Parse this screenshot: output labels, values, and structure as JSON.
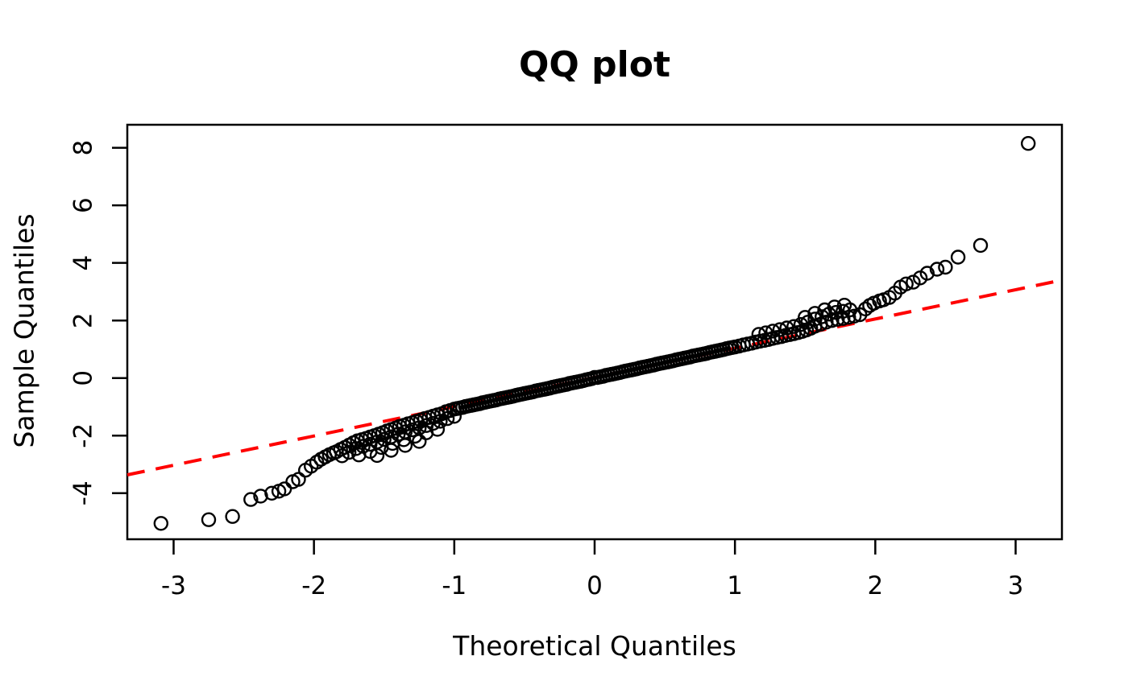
{
  "title": "QQ plot",
  "x_axis": {
    "label": "Theoretical Quantiles",
    "ticks": [
      -3,
      -2,
      -1,
      0,
      1,
      2,
      3
    ]
  },
  "y_axis": {
    "label": "Sample Quantiles",
    "ticks": [
      -4,
      -2,
      0,
      2,
      4,
      6,
      8
    ]
  },
  "colors": {
    "points": "#000000",
    "reference_line": "#ff0000",
    "axis": "#000000",
    "background": "#ffffff"
  },
  "chart_data": {
    "type": "scatter",
    "title": "QQ plot",
    "xlabel": "Theoretical Quantiles",
    "ylabel": "Sample Quantiles",
    "xlim": [
      -3.33,
      3.33
    ],
    "ylim": [
      -5.6,
      8.8
    ],
    "x_ticks": [
      -3,
      -2,
      -1,
      0,
      1,
      2,
      3
    ],
    "y_ticks": [
      -4,
      -2,
      0,
      2,
      4,
      6,
      8
    ],
    "grid": false,
    "legend": null,
    "point_style": {
      "marker": "open-circle",
      "color": "#000000",
      "radius_px": 8,
      "stroke_px": 2.4
    },
    "reference_line": {
      "style": "dashed",
      "color": "#ff0000",
      "slope": 1.016,
      "intercept": 0.02,
      "stroke_px": 4,
      "dash": [
        22,
        14
      ]
    },
    "points": [
      [
        -3.09,
        -5.05
      ],
      [
        -2.75,
        -4.92
      ],
      [
        -2.58,
        -4.81
      ],
      [
        -2.45,
        -4.22
      ],
      [
        -2.38,
        -4.1
      ],
      [
        -2.3,
        -4.0
      ],
      [
        -2.25,
        -3.93
      ],
      [
        -2.21,
        -3.85
      ],
      [
        -2.15,
        -3.6
      ],
      [
        -2.11,
        -3.52
      ],
      [
        -2.06,
        -3.2
      ],
      [
        -2.02,
        -3.06
      ],
      [
        -1.98,
        -2.92
      ],
      [
        -1.95,
        -2.82
      ],
      [
        -1.92,
        -2.74
      ],
      [
        -1.89,
        -2.66
      ],
      [
        -1.86,
        -2.6
      ],
      [
        -1.84,
        -2.56
      ],
      [
        -1.81,
        -2.48
      ],
      [
        -1.78,
        -2.41
      ],
      [
        -1.75,
        -2.33
      ],
      [
        -1.72,
        -2.25
      ],
      [
        -1.69,
        -2.18
      ],
      [
        -1.66,
        -2.14
      ],
      [
        -1.63,
        -2.1
      ],
      [
        -1.6,
        -2.05
      ],
      [
        -1.57,
        -2.0
      ],
      [
        -1.54,
        -1.95
      ],
      [
        -1.51,
        -1.9
      ],
      [
        -1.48,
        -1.84
      ],
      [
        -1.45,
        -1.79
      ],
      [
        -1.42,
        -1.74
      ],
      [
        -1.39,
        -1.68
      ],
      [
        -1.36,
        -1.64
      ],
      [
        -1.33,
        -1.59
      ],
      [
        -1.3,
        -1.55
      ],
      [
        -1.27,
        -1.5
      ],
      [
        -1.24,
        -1.46
      ],
      [
        -1.21,
        -1.41
      ],
      [
        -1.18,
        -1.37
      ],
      [
        -1.15,
        -1.32
      ],
      [
        -1.12,
        -1.28
      ],
      [
        -1.09,
        -1.24
      ],
      [
        -1.06,
        -1.17
      ],
      [
        -1.03,
        -1.13
      ],
      [
        -1.0,
        -1.08
      ],
      [
        -0.98,
        -1.06
      ],
      [
        -0.96,
        -1.04
      ],
      [
        -0.94,
        -1.02
      ],
      [
        -0.92,
        -0.99
      ],
      [
        -0.9,
        -0.97
      ],
      [
        -0.88,
        -0.95
      ],
      [
        -0.86,
        -0.93
      ],
      [
        -0.84,
        -0.91
      ],
      [
        -0.82,
        -0.89
      ],
      [
        -0.8,
        -0.86
      ],
      [
        -0.78,
        -0.84
      ],
      [
        -0.76,
        -0.82
      ],
      [
        -0.74,
        -0.8
      ],
      [
        -0.72,
        -0.78
      ],
      [
        -0.7,
        -0.76
      ],
      [
        -0.68,
        -0.73
      ],
      [
        -0.66,
        -0.71
      ],
      [
        -0.64,
        -0.69
      ],
      [
        -0.62,
        -0.67
      ],
      [
        -0.6,
        -0.65
      ],
      [
        -0.58,
        -0.63
      ],
      [
        -0.56,
        -0.6
      ],
      [
        -0.54,
        -0.58
      ],
      [
        -0.52,
        -0.56
      ],
      [
        -0.5,
        -0.54
      ],
      [
        -0.48,
        -0.52
      ],
      [
        -0.46,
        -0.5
      ],
      [
        -0.44,
        -0.48
      ],
      [
        -0.42,
        -0.45
      ],
      [
        -0.4,
        -0.43
      ],
      [
        -0.38,
        -0.41
      ],
      [
        -0.36,
        -0.39
      ],
      [
        -0.34,
        -0.37
      ],
      [
        -0.32,
        -0.35
      ],
      [
        -0.3,
        -0.32
      ],
      [
        -0.28,
        -0.3
      ],
      [
        -0.26,
        -0.28
      ],
      [
        -0.24,
        -0.26
      ],
      [
        -0.22,
        -0.24
      ],
      [
        -0.2,
        -0.22
      ],
      [
        -0.18,
        -0.19
      ],
      [
        -0.16,
        -0.17
      ],
      [
        -0.14,
        -0.15
      ],
      [
        -0.12,
        -0.13
      ],
      [
        -0.1,
        -0.11
      ],
      [
        -0.08,
        -0.09
      ],
      [
        -0.06,
        -0.06
      ],
      [
        -0.04,
        -0.04
      ],
      [
        -0.02,
        -0.02
      ],
      [
        0.0,
        0.02
      ],
      [
        0.02,
        0.02
      ],
      [
        0.04,
        0.04
      ],
      [
        0.06,
        0.06
      ],
      [
        0.08,
        0.09
      ],
      [
        0.1,
        0.11
      ],
      [
        0.12,
        0.13
      ],
      [
        0.14,
        0.15
      ],
      [
        0.16,
        0.17
      ],
      [
        0.18,
        0.19
      ],
      [
        0.2,
        0.22
      ],
      [
        0.22,
        0.24
      ],
      [
        0.24,
        0.26
      ],
      [
        0.26,
        0.28
      ],
      [
        0.28,
        0.3
      ],
      [
        0.3,
        0.32
      ],
      [
        0.32,
        0.35
      ],
      [
        0.34,
        0.37
      ],
      [
        0.36,
        0.39
      ],
      [
        0.38,
        0.41
      ],
      [
        0.4,
        0.43
      ],
      [
        0.42,
        0.45
      ],
      [
        0.44,
        0.48
      ],
      [
        0.46,
        0.5
      ],
      [
        0.48,
        0.52
      ],
      [
        0.5,
        0.54
      ],
      [
        0.52,
        0.56
      ],
      [
        0.54,
        0.58
      ],
      [
        0.56,
        0.6
      ],
      [
        0.58,
        0.63
      ],
      [
        0.6,
        0.65
      ],
      [
        0.62,
        0.67
      ],
      [
        0.64,
        0.69
      ],
      [
        0.66,
        0.71
      ],
      [
        0.68,
        0.73
      ],
      [
        0.7,
        0.76
      ],
      [
        0.72,
        0.78
      ],
      [
        0.74,
        0.8
      ],
      [
        0.76,
        0.82
      ],
      [
        0.78,
        0.84
      ],
      [
        0.8,
        0.86
      ],
      [
        0.82,
        0.89
      ],
      [
        0.84,
        0.91
      ],
      [
        0.86,
        0.93
      ],
      [
        0.88,
        0.95
      ],
      [
        0.9,
        0.97
      ],
      [
        0.92,
        0.99
      ],
      [
        0.94,
        1.02
      ],
      [
        0.96,
        1.04
      ],
      [
        0.98,
        1.06
      ],
      [
        1.0,
        1.08
      ],
      [
        1.03,
        1.11
      ],
      [
        1.06,
        1.15
      ],
      [
        1.09,
        1.18
      ],
      [
        1.12,
        1.21
      ],
      [
        1.15,
        1.25
      ],
      [
        1.18,
        1.28
      ],
      [
        1.21,
        1.31
      ],
      [
        1.24,
        1.34
      ],
      [
        1.27,
        1.38
      ],
      [
        1.3,
        1.41
      ],
      [
        1.33,
        1.44
      ],
      [
        1.36,
        1.48
      ],
      [
        1.39,
        1.51
      ],
      [
        1.42,
        1.54
      ],
      [
        1.45,
        1.58
      ],
      [
        1.48,
        1.62
      ],
      [
        1.51,
        1.67
      ],
      [
        1.54,
        1.73
      ],
      [
        1.57,
        1.8
      ],
      [
        1.61,
        1.87
      ],
      [
        1.65,
        1.94
      ],
      [
        1.69,
        2.0
      ],
      [
        1.73,
        2.04
      ],
      [
        1.77,
        2.07
      ],
      [
        1.81,
        2.11
      ],
      [
        1.85,
        2.15
      ],
      [
        1.89,
        2.2
      ],
      [
        1.93,
        2.4
      ],
      [
        1.96,
        2.52
      ],
      [
        1.99,
        2.6
      ],
      [
        2.03,
        2.68
      ],
      [
        2.06,
        2.72
      ],
      [
        2.1,
        2.8
      ],
      [
        2.14,
        2.95
      ],
      [
        2.18,
        3.16
      ],
      [
        2.22,
        3.27
      ],
      [
        2.27,
        3.33
      ],
      [
        2.32,
        3.48
      ],
      [
        2.37,
        3.64
      ],
      [
        2.44,
        3.78
      ],
      [
        2.5,
        3.85
      ],
      [
        2.59,
        4.2
      ],
      [
        2.75,
        4.61
      ],
      [
        3.09,
        8.15
      ],
      [
        -1.8,
        -2.7
      ],
      [
        -1.75,
        -2.58
      ],
      [
        -1.7,
        -2.45
      ],
      [
        -1.65,
        -2.37
      ],
      [
        -1.6,
        -2.3
      ],
      [
        -1.55,
        -2.22
      ],
      [
        -1.5,
        -2.13
      ],
      [
        -1.45,
        -2.04
      ],
      [
        -1.4,
        -1.95
      ],
      [
        -1.35,
        -1.87
      ],
      [
        -1.3,
        -1.8
      ],
      [
        -1.25,
        -1.73
      ],
      [
        -1.2,
        -1.65
      ],
      [
        -1.15,
        -1.57
      ],
      [
        -1.1,
        -1.5
      ],
      [
        -1.05,
        -1.41
      ],
      [
        -1.0,
        -1.33
      ],
      [
        -1.68,
        -2.67
      ],
      [
        -1.6,
        -2.55
      ],
      [
        -1.52,
        -2.41
      ],
      [
        -1.44,
        -2.27
      ],
      [
        -1.36,
        -2.14
      ],
      [
        -1.28,
        -2.02
      ],
      [
        -1.2,
        -1.9
      ],
      [
        -1.12,
        -1.78
      ],
      [
        -1.55,
        -2.69
      ],
      [
        -1.45,
        -2.51
      ],
      [
        -1.35,
        -2.34
      ],
      [
        -1.25,
        -2.2
      ],
      [
        1.17,
        1.52
      ],
      [
        1.22,
        1.57
      ],
      [
        1.27,
        1.63
      ],
      [
        1.32,
        1.68
      ],
      [
        1.37,
        1.74
      ],
      [
        1.42,
        1.79
      ],
      [
        1.47,
        1.86
      ],
      [
        1.52,
        1.94
      ],
      [
        1.57,
        2.05
      ],
      [
        1.62,
        2.13
      ],
      [
        1.67,
        2.22
      ],
      [
        1.72,
        2.28
      ],
      [
        1.77,
        2.32
      ],
      [
        1.82,
        2.37
      ],
      [
        1.5,
        2.11
      ],
      [
        1.57,
        2.25
      ],
      [
        1.64,
        2.37
      ],
      [
        1.71,
        2.47
      ],
      [
        1.78,
        2.53
      ]
    ]
  }
}
